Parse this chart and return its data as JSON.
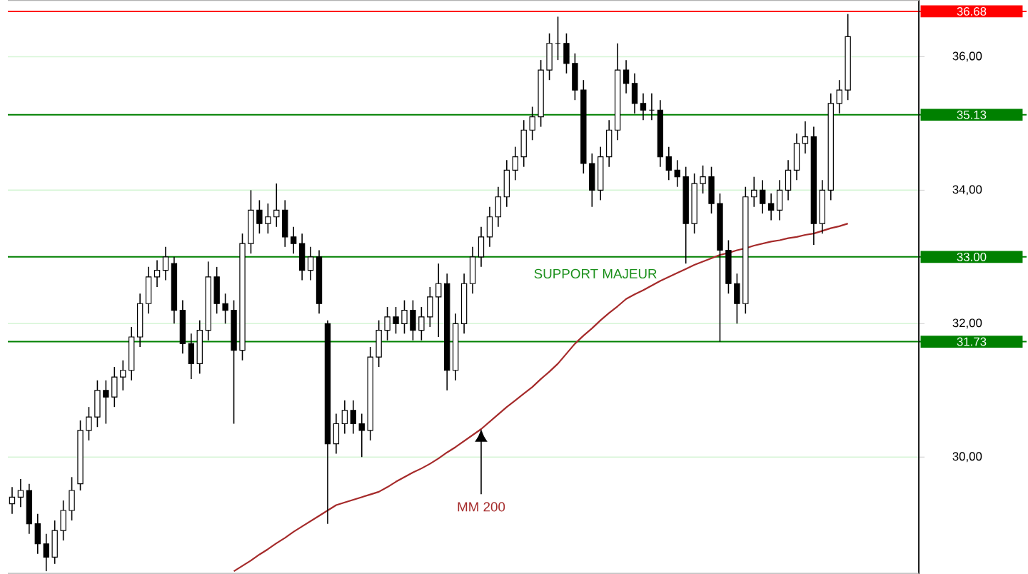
{
  "chart_data": {
    "type": "candlestick",
    "color": "#000000",
    "categories": [
      null,
      null,
      null,
      null,
      null,
      null,
      null,
      null,
      null,
      null,
      null,
      null,
      null,
      null,
      null,
      null,
      null,
      null,
      null,
      null,
      null,
      null,
      null,
      null,
      null,
      null,
      null,
      null,
      null,
      null,
      null,
      null,
      null,
      null,
      null,
      null,
      null,
      null,
      null,
      null,
      null,
      null,
      null,
      null,
      null,
      null,
      null,
      null,
      null,
      null,
      null,
      null,
      null,
      null,
      null,
      null,
      null,
      null,
      null,
      null,
      null,
      null,
      null,
      null,
      null,
      null,
      null,
      null,
      null,
      null,
      null,
      null,
      null,
      null,
      null,
      null,
      null,
      null,
      null,
      null,
      null,
      null,
      null,
      null,
      null,
      null,
      null,
      null,
      null,
      null,
      null,
      null,
      null,
      null,
      null,
      null,
      null,
      null,
      null
    ],
    "ohlc": [
      [
        29.3,
        29.55,
        29.15,
        29.4
      ],
      [
        29.4,
        29.67,
        29.25,
        29.5
      ],
      [
        29.5,
        29.6,
        28.85,
        29.0
      ],
      [
        29.0,
        29.15,
        28.55,
        28.7
      ],
      [
        28.7,
        28.85,
        28.29,
        28.5
      ],
      [
        28.5,
        29.05,
        28.4,
        28.9
      ],
      [
        28.9,
        29.35,
        28.75,
        29.2
      ],
      [
        29.2,
        29.7,
        29.05,
        29.5
      ],
      [
        29.6,
        30.55,
        29.5,
        30.4
      ],
      [
        30.4,
        30.75,
        30.25,
        30.6
      ],
      [
        30.6,
        31.15,
        30.45,
        31.0
      ],
      [
        31.0,
        31.15,
        30.5,
        30.9
      ],
      [
        30.9,
        31.35,
        30.75,
        31.2
      ],
      [
        31.2,
        31.45,
        31.0,
        31.3
      ],
      [
        31.3,
        31.95,
        31.15,
        31.8
      ],
      [
        31.8,
        32.45,
        31.65,
        32.3
      ],
      [
        32.3,
        32.85,
        32.15,
        32.7
      ],
      [
        32.7,
        32.95,
        32.55,
        32.8
      ],
      [
        32.8,
        33.15,
        32.65,
        33.0
      ],
      [
        32.9,
        33.0,
        32.0,
        32.2
      ],
      [
        32.2,
        32.35,
        31.55,
        31.7
      ],
      [
        31.7,
        31.85,
        31.17,
        31.4
      ],
      [
        31.4,
        32.05,
        31.25,
        31.9
      ],
      [
        31.9,
        32.93,
        31.75,
        32.7
      ],
      [
        32.7,
        32.85,
        32.15,
        32.3
      ],
      [
        32.3,
        32.45,
        32.0,
        32.2
      ],
      [
        32.2,
        32.35,
        30.5,
        31.6
      ],
      [
        31.6,
        33.35,
        31.45,
        33.2
      ],
      [
        33.2,
        34.0,
        33.05,
        33.7
      ],
      [
        33.7,
        33.85,
        33.35,
        33.5
      ],
      [
        33.5,
        33.8,
        33.35,
        33.6
      ],
      [
        33.6,
        34.1,
        33.45,
        33.7
      ],
      [
        33.7,
        33.85,
        33.15,
        33.3
      ],
      [
        33.3,
        33.45,
        33.05,
        33.2
      ],
      [
        33.2,
        33.35,
        32.65,
        32.8
      ],
      [
        32.8,
        33.15,
        32.65,
        33.0
      ],
      [
        33.0,
        33.1,
        32.15,
        32.3
      ],
      [
        32.0,
        32.05,
        29.0,
        30.2
      ],
      [
        30.2,
        30.65,
        30.05,
        30.5
      ],
      [
        30.5,
        30.85,
        30.35,
        30.7
      ],
      [
        30.7,
        30.85,
        30.35,
        30.5
      ],
      [
        30.5,
        30.65,
        30.0,
        30.4
      ],
      [
        30.4,
        31.65,
        30.25,
        31.5
      ],
      [
        31.5,
        32.05,
        31.35,
        31.9
      ],
      [
        31.9,
        32.25,
        31.75,
        32.1
      ],
      [
        32.1,
        32.25,
        31.85,
        32.0
      ],
      [
        32.0,
        32.35,
        31.85,
        32.2
      ],
      [
        32.2,
        32.35,
        31.75,
        31.9
      ],
      [
        31.9,
        32.25,
        31.75,
        32.1
      ],
      [
        32.1,
        32.55,
        31.95,
        32.4
      ],
      [
        32.4,
        32.9,
        31.8,
        32.6
      ],
      [
        32.6,
        32.75,
        31.0,
        31.3
      ],
      [
        31.3,
        32.15,
        31.15,
        32.0
      ],
      [
        32.0,
        32.75,
        31.85,
        32.6
      ],
      [
        32.6,
        33.15,
        32.45,
        33.0
      ],
      [
        33.0,
        33.45,
        32.85,
        33.3
      ],
      [
        33.3,
        33.75,
        33.15,
        33.6
      ],
      [
        33.6,
        34.05,
        33.45,
        33.9
      ],
      [
        33.9,
        34.45,
        33.75,
        34.3
      ],
      [
        34.3,
        34.65,
        34.15,
        34.5
      ],
      [
        34.5,
        35.05,
        34.35,
        34.9
      ],
      [
        34.9,
        35.25,
        34.75,
        35.1
      ],
      [
        35.1,
        35.95,
        34.95,
        35.8
      ],
      [
        35.8,
        36.35,
        35.65,
        36.2
      ],
      [
        36.2,
        36.6,
        35.95,
        36.2
      ],
      [
        36.2,
        36.35,
        35.75,
        35.9
      ],
      [
        35.9,
        36.05,
        35.35,
        35.5
      ],
      [
        35.5,
        35.65,
        34.25,
        34.4
      ],
      [
        34.4,
        34.55,
        33.75,
        34.0
      ],
      [
        34.0,
        34.65,
        33.85,
        34.5
      ],
      [
        34.5,
        35.05,
        34.35,
        34.9
      ],
      [
        34.9,
        36.2,
        34.75,
        35.8
      ],
      [
        35.8,
        35.95,
        35.45,
        35.6
      ],
      [
        35.6,
        35.75,
        35.15,
        35.3
      ],
      [
        35.3,
        35.45,
        35.05,
        35.2
      ],
      [
        35.2,
        35.45,
        35.05,
        35.2
      ],
      [
        35.2,
        35.35,
        34.35,
        34.5
      ],
      [
        34.5,
        34.65,
        34.15,
        34.3
      ],
      [
        34.3,
        34.45,
        34.05,
        34.2
      ],
      [
        34.2,
        34.35,
        32.9,
        33.5
      ],
      [
        33.5,
        34.25,
        33.35,
        34.1
      ],
      [
        34.1,
        34.37,
        33.95,
        34.2
      ],
      [
        34.2,
        34.35,
        33.65,
        33.8
      ],
      [
        33.8,
        33.95,
        31.73,
        33.1
      ],
      [
        33.1,
        33.25,
        32.45,
        32.6
      ],
      [
        32.6,
        32.75,
        32.0,
        32.3
      ],
      [
        32.3,
        34.05,
        32.15,
        33.9
      ],
      [
        33.9,
        34.2,
        33.75,
        34.0
      ],
      [
        34.0,
        34.15,
        33.65,
        33.8
      ],
      [
        33.8,
        33.95,
        33.55,
        33.7
      ],
      [
        33.7,
        34.15,
        33.55,
        34.0
      ],
      [
        34.0,
        34.45,
        33.85,
        34.3
      ],
      [
        34.3,
        34.85,
        34.15,
        34.7
      ],
      [
        34.7,
        35.03,
        34.55,
        34.8
      ],
      [
        34.8,
        34.95,
        33.18,
        33.5
      ],
      [
        33.5,
        34.15,
        33.35,
        34.0
      ],
      [
        34.0,
        35.45,
        33.85,
        35.3
      ],
      [
        35.3,
        35.65,
        35.15,
        35.5
      ],
      [
        35.5,
        36.64,
        35.35,
        36.3
      ]
    ],
    "series": [
      {
        "name": "MM 200",
        "type": "line",
        "color": "#a52a2a",
        "values": [
          null,
          null,
          null,
          null,
          null,
          null,
          null,
          null,
          null,
          null,
          null,
          null,
          null,
          null,
          null,
          null,
          null,
          null,
          null,
          null,
          null,
          null,
          null,
          null,
          null,
          null,
          28.29,
          28.37,
          28.45,
          28.54,
          28.62,
          28.71,
          28.79,
          28.88,
          28.96,
          29.04,
          29.12,
          29.2,
          29.28,
          29.32,
          29.36,
          29.4,
          29.44,
          29.48,
          29.55,
          29.63,
          29.7,
          29.77,
          29.83,
          29.9,
          29.98,
          30.07,
          30.15,
          30.24,
          30.33,
          30.42,
          30.53,
          30.64,
          30.75,
          30.85,
          30.95,
          31.05,
          31.17,
          31.28,
          31.4,
          31.55,
          31.7,
          31.82,
          31.93,
          32.05,
          32.16,
          32.26,
          32.37,
          32.44,
          32.5,
          32.57,
          32.64,
          32.7,
          32.76,
          32.82,
          32.88,
          32.93,
          32.98,
          33.03,
          33.06,
          33.1,
          33.13,
          33.17,
          33.2,
          33.23,
          33.25,
          33.28,
          33.3,
          33.33,
          33.35,
          33.39,
          33.43,
          33.46,
          33.5
        ]
      }
    ],
    "ylim": [
      28.25,
      36.85
    ],
    "yticks": [
      {
        "value": 30,
        "label": "30,00"
      },
      {
        "value": 32,
        "label": "32,00"
      },
      {
        "value": 34,
        "label": "34,00"
      },
      {
        "value": 36,
        "label": "36,00"
      }
    ],
    "grid": "y",
    "tick_labels": "y",
    "ref_lines": [
      {
        "axis": "y",
        "value": 36.68,
        "label": "36.68",
        "color": "#ff0000"
      },
      {
        "axis": "y",
        "value": 35.13,
        "label": "35.13",
        "color": "#008000"
      },
      {
        "axis": "y",
        "value": 33.0,
        "label": "33.00",
        "color": "#008000"
      },
      {
        "axis": "y",
        "value": 31.73,
        "label": "31.73",
        "color": "#008000"
      }
    ],
    "annotations": [
      {
        "text": "SUPPORT MAJEUR",
        "y": 33.0
      }
    ]
  }
}
